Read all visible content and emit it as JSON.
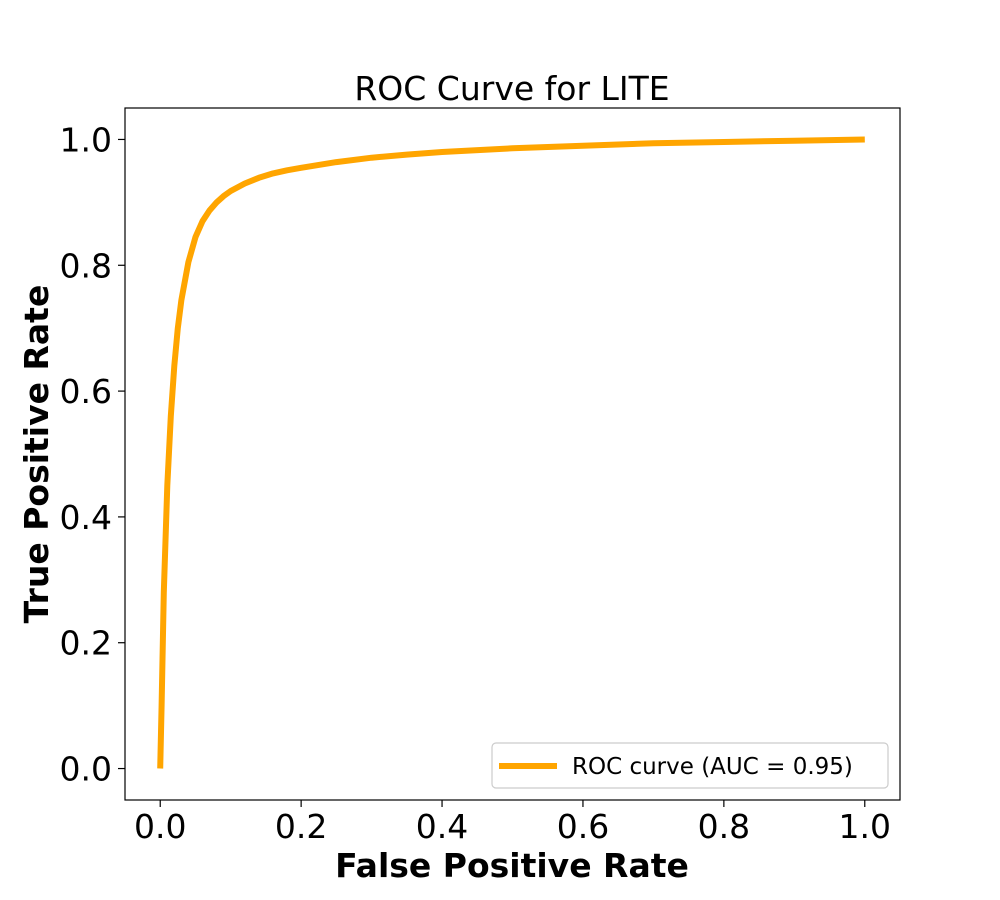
{
  "chart_data": {
    "type": "line",
    "title": "ROC Curve for LITE",
    "xlabel": "False Positive Rate",
    "ylabel": "True Positive Rate",
    "xlim": [
      -0.05,
      1.05
    ],
    "ylim": [
      -0.05,
      1.05
    ],
    "grid": false,
    "legend_position": "bottom-right",
    "xticks": [
      0.0,
      0.2,
      0.4,
      0.6,
      0.8,
      1.0
    ],
    "xtick_labels": [
      "0.0",
      "0.2",
      "0.4",
      "0.6",
      "0.8",
      "1.0"
    ],
    "yticks": [
      0.0,
      0.2,
      0.4,
      0.6,
      0.8,
      1.0
    ],
    "ytick_labels": [
      "0.0",
      "0.2",
      "0.4",
      "0.6",
      "0.8",
      "1.0"
    ],
    "series": [
      {
        "name": "ROC curve (AUC = 0.95)",
        "color": "#FFA500",
        "x": [
          0.0,
          0.002,
          0.005,
          0.01,
          0.015,
          0.02,
          0.025,
          0.03,
          0.04,
          0.05,
          0.06,
          0.07,
          0.08,
          0.09,
          0.1,
          0.12,
          0.14,
          0.16,
          0.18,
          0.2,
          0.25,
          0.3,
          0.35,
          0.4,
          0.5,
          0.6,
          0.7,
          0.8,
          0.9,
          1.0
        ],
        "y": [
          0.0,
          0.1,
          0.28,
          0.45,
          0.56,
          0.64,
          0.7,
          0.745,
          0.805,
          0.845,
          0.87,
          0.887,
          0.9,
          0.91,
          0.918,
          0.93,
          0.939,
          0.946,
          0.951,
          0.955,
          0.964,
          0.971,
          0.976,
          0.98,
          0.986,
          0.99,
          0.994,
          0.996,
          0.998,
          1.0
        ]
      }
    ]
  }
}
